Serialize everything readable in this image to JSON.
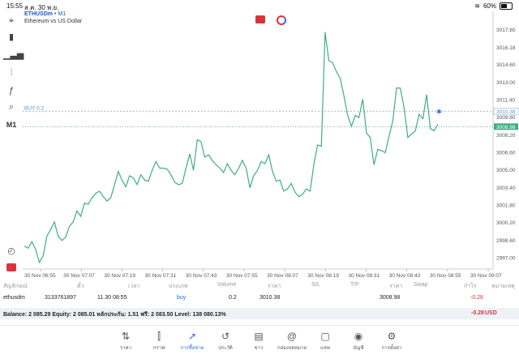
{
  "status": {
    "time": "15:55",
    "date": "ส.ค. 30 พ.ย.",
    "battery": "60%"
  },
  "symbol": {
    "name": "ETHUSDm",
    "tf": "M1",
    "desc": "Ethereum vs US Dollar"
  },
  "left_toolbar": [
    {
      "icon": "crosshair-icon",
      "glyph": "⌖"
    },
    {
      "icon": "candles-icon",
      "glyph": "▮"
    },
    {
      "icon": "bars-icon",
      "glyph": "▁▃▅"
    },
    {
      "icon": "indicators-icon",
      "glyph": "⫶"
    },
    {
      "icon": "function-icon",
      "glyph": "ƒ"
    },
    {
      "icon": "objects-icon",
      "glyph": "⌕"
    },
    {
      "icon": "timeframe-label",
      "glyph": "M1"
    }
  ],
  "chart": {
    "price_ticks": [
      "3017.80",
      "3016.18",
      "3014.60",
      "3013.00",
      "3011.40",
      "3009.80",
      "3008.20",
      "3006.60",
      "3005.00",
      "3003.40",
      "3001.80",
      "3000.20",
      "2998.60",
      "2997.00"
    ],
    "time_ticks": [
      "30 Nov 06:55",
      "30 Nov 07:07",
      "30 Nov 07:19",
      "30 Nov 07:31",
      "30 Nov 07:43",
      "30 Nov 07:55",
      "30 Nov 08:07",
      "30 Nov 08:19",
      "30 Nov 08:31",
      "30 Nov 08:43",
      "30 Nov 08:55",
      "30 Nov 09:07"
    ],
    "buy_label": "BUY 0.2",
    "buy_price": "3010.38",
    "current_price": "3008.98",
    "colors": {
      "line": "#3fae7f",
      "buy": "#8fb8d6",
      "current": "#3fae7f",
      "grid": "#e6e6e6"
    }
  },
  "chart_data": {
    "type": "line",
    "x_range": [
      "30 Nov 06:55",
      "30 Nov 09:07"
    ],
    "ylim": [
      2996.0,
      3018.9
    ],
    "series": [
      {
        "values": [
          2998.1,
          2997.9,
          2998.5,
          2997.8,
          2996.6,
          2997.2,
          2999.0,
          2999.6,
          3000.3,
          2999.0,
          2998.6,
          2998.9,
          2999.9,
          3000.3,
          3001.3,
          3000.8,
          3002.0,
          3001.9,
          3002.5,
          3002.9,
          3003.1,
          3002.6,
          3002.2,
          3002.5,
          3003.7,
          3004.9,
          3004.1,
          3003.5,
          3004.5,
          3004.3,
          3003.7,
          3004.6,
          3004.1,
          3004.0,
          3005.0,
          3005.8,
          3005.2,
          3005.2,
          3005.1,
          3004.6,
          3003.9,
          3003.7,
          3003.8,
          3005.2,
          3006.5,
          3005.0,
          3007.8,
          3007.6,
          3006.2,
          3006.4,
          3005.9,
          3005.5,
          3005.2,
          3004.8,
          3005.6,
          3005.0,
          3004.6,
          3005.2,
          3005.9,
          3005.2,
          3003.4,
          3004.5,
          3005.0,
          3005.8,
          3005.6,
          3006.4,
          3004.9,
          3004.0,
          3004.1,
          3003.1,
          3003.3,
          3003.8,
          3003.0,
          3002.6,
          3002.8,
          3003.3,
          3003.1,
          3005.5,
          3007.3,
          3007.2,
          3017.6,
          3015.0,
          3014.8,
          3014.0,
          3013.4,
          3011.8,
          3010.0,
          3009.0,
          3010.0,
          3009.8,
          3011.5,
          3008.4,
          3008.0,
          3005.5,
          3006.9,
          3006.8,
          3006.6,
          3008.1,
          3009.5,
          3012.5,
          3012.5,
          3010.7,
          3008.0,
          3008.3,
          3008.6,
          3010.1,
          3009.7,
          3011.9,
          3008.8,
          3008.6,
          3009.2
        ]
      }
    ]
  },
  "positions_header": [
    "สัญลักษณ์",
    "ตั๋ว",
    "เวลา",
    "ประเภท",
    "Volume",
    "ราคา",
    "S/L",
    "T/P",
    "ราคา",
    "Swap",
    "กำไร",
    "หมายเหตุ"
  ],
  "position_row": {
    "symbol": "ethusdm",
    "ticket": "3133761897",
    "time": "11.30 08:55",
    "type": "buy",
    "volume": "0.2",
    "open": "3010.38",
    "current": "3008.98",
    "profit": "-0.28"
  },
  "balance": {
    "text": "Balance: 2 085.29 Equity: 2 085.01 หลักประกัน: 1.51 ฟรี: 2 083.50 Level: 138 080.13%",
    "pnl": "-0.28",
    "currency": "USD"
  },
  "nav": [
    {
      "icon": "quotes-icon",
      "glyph": "⇅",
      "label": "ราคา"
    },
    {
      "icon": "chart-icon",
      "glyph": "⫿",
      "label": "กราฟ"
    },
    {
      "icon": "trade-icon",
      "glyph": "↗",
      "label": "การซื้อขาย",
      "active": true
    },
    {
      "icon": "history-icon",
      "glyph": "↺",
      "label": "ประวัติ"
    },
    {
      "icon": "news-icon",
      "glyph": "▤",
      "label": "ข่าว"
    },
    {
      "icon": "mailbox-icon",
      "glyph": "@",
      "label": "กล่องจดหมาย"
    },
    {
      "icon": "chat-icon",
      "glyph": "▢",
      "label": "แชท"
    },
    {
      "icon": "account-icon",
      "glyph": "◉",
      "label": "บัญชี"
    },
    {
      "icon": "settings-icon",
      "glyph": "⚙",
      "label": "การตั้งค่า"
    }
  ]
}
